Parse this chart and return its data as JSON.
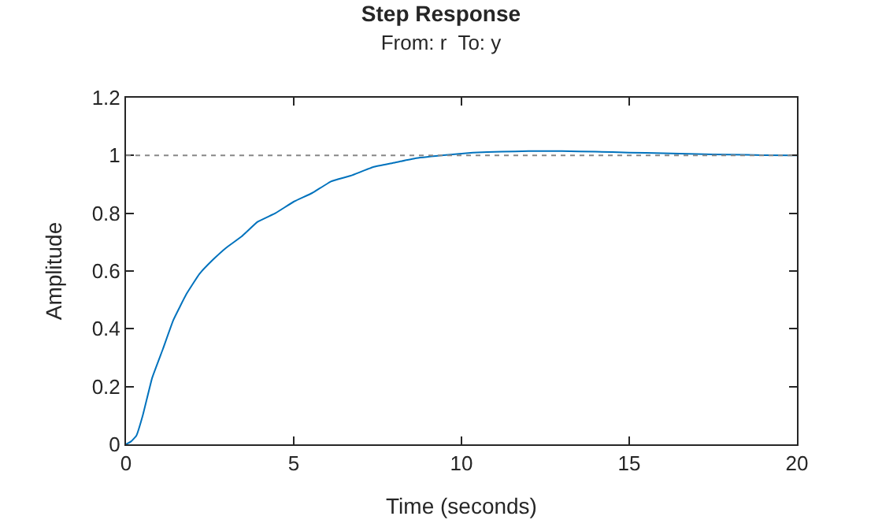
{
  "chart_data": {
    "type": "line",
    "title": "Step Response",
    "subtitle": "From: r  To: y",
    "xlabel": "Time (seconds)",
    "ylabel": "Amplitude",
    "x": [
      0,
      0.15,
      0.31,
      0.5,
      0.78,
      1.1,
      1.41,
      1.8,
      2.19,
      2.6,
      2.98,
      3.45,
      3.92,
      4.45,
      5,
      5.55,
      6.11,
      6.7,
      7.37,
      8,
      8.62,
      9.4,
      10.34,
      11.2,
      12,
      13,
      14,
      15,
      16,
      17,
      18,
      19,
      20
    ],
    "series": [
      {
        "color": "#0072bd",
        "values": [
          0,
          0.01,
          0.03,
          0.1,
          0.23,
          0.33,
          0.43,
          0.52,
          0.59,
          0.64,
          0.68,
          0.72,
          0.77,
          0.8,
          0.84,
          0.87,
          0.91,
          0.93,
          0.96,
          0.975,
          0.99,
          1.0,
          1.01,
          1.013,
          1.015,
          1.015,
          1.013,
          1.01,
          1.008,
          1.005,
          1.003,
          1.001,
          1.0
        ]
      }
    ],
    "xlim": [
      0,
      20
    ],
    "xticks": [
      0,
      5,
      10,
      15,
      20
    ],
    "ylim": [
      0,
      1.2
    ],
    "yticks": [
      0,
      0.2,
      0.4,
      0.6,
      0.8,
      1,
      1.2
    ],
    "ref_lines": [
      {
        "axis": "y",
        "value": 1,
        "color": "#888888",
        "line_style": "dotted"
      }
    ],
    "marker": "none",
    "line_style": "solid"
  }
}
